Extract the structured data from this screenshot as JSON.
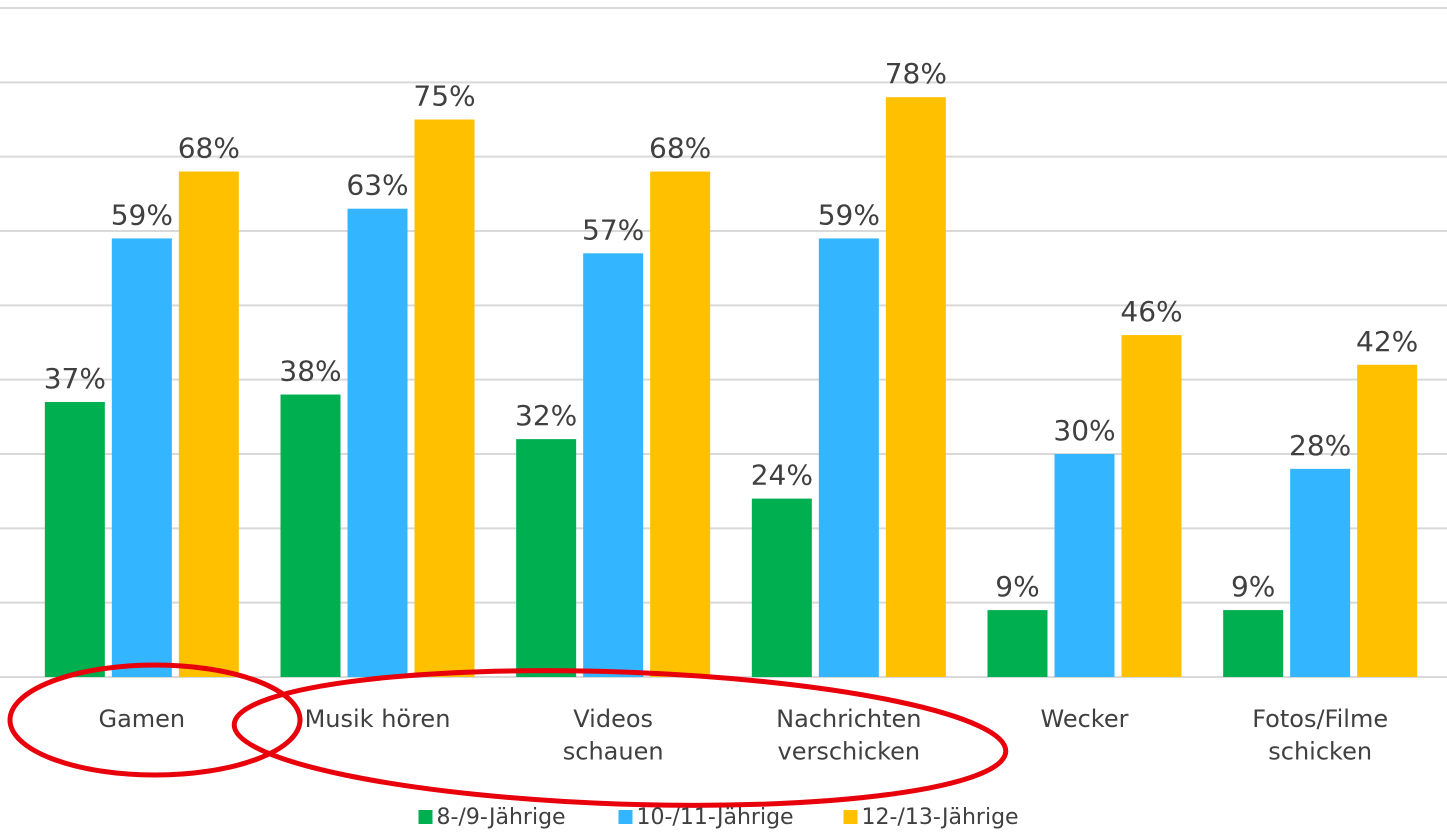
{
  "chart_data": {
    "type": "bar",
    "categories": [
      "Gamen",
      "Musik hören",
      "Videos\nschauen",
      "Nachrichten\nverschicken",
      "Wecker",
      "Fotos/Filme\nschicken"
    ],
    "series": [
      {
        "name": "8-/9-Jährige",
        "color": "#00b050",
        "values": [
          37,
          38,
          32,
          24,
          9,
          9
        ],
        "value_labels": [
          "37%",
          "38%",
          "32%",
          "24%",
          "9%",
          "9%"
        ]
      },
      {
        "name": "10-/11-Jährige",
        "color": "#33b5ff",
        "values": [
          59,
          63,
          57,
          59,
          30,
          28
        ],
        "value_labels": [
          "59%",
          "63%",
          "57%",
          "59%",
          "30%",
          "28%"
        ]
      },
      {
        "name": "12-/13-Jährige",
        "color": "#ffc000",
        "values": [
          68,
          75,
          68,
          78,
          46,
          42
        ],
        "value_labels": [
          "68%",
          "75%",
          "68%",
          "78%",
          "46%",
          "42%"
        ]
      }
    ],
    "ylim": [
      0,
      90
    ],
    "yticks": [
      0,
      10,
      20,
      30,
      40,
      50,
      60,
      70,
      80,
      90
    ],
    "grid": true,
    "legend": "bottom"
  }
}
